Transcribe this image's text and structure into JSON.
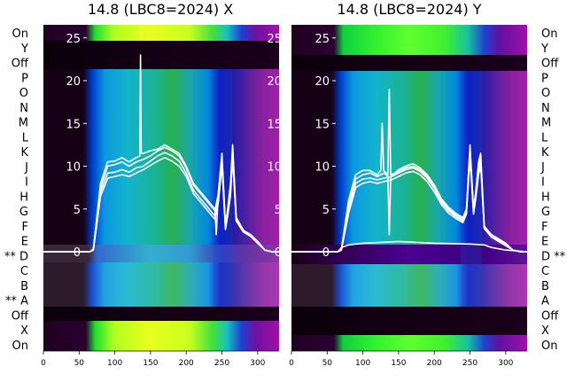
{
  "panels": [
    {
      "title": "14.8 (LBC8=2024) X",
      "row_labels": [
        "On",
        "Y",
        "Off",
        "P",
        "O",
        "N",
        "M",
        "L",
        "K",
        "J",
        "I",
        "H",
        "G",
        "F",
        "E",
        "** D",
        "C",
        "B",
        "** A",
        "Off",
        "X",
        "On"
      ],
      "yticks": [
        "25",
        "20",
        "15",
        "10",
        "5",
        "0"
      ],
      "xticks": [
        "0",
        "50",
        "100",
        "150",
        "200",
        "250",
        "300"
      ]
    },
    {
      "title": "14.8 (LBC8=2024) Y",
      "row_labels": [
        "On",
        "Y",
        "Off",
        "P",
        "O",
        "N",
        "M",
        "L",
        "K",
        "J",
        "I",
        "H",
        "G",
        "F",
        "E",
        "D **",
        "C",
        "B",
        "A",
        "Off",
        "X",
        "On"
      ],
      "yticks": [
        "25",
        "20",
        "15",
        "10",
        "5",
        "0"
      ],
      "xticks": [
        "0",
        "50",
        "100",
        "150",
        "200",
        "250",
        "300"
      ]
    }
  ],
  "chart_data": [
    {
      "type": "line",
      "title": "14.8 (LBC8=2024) X",
      "xlim": [
        0,
        330
      ],
      "ylim": [
        -12,
        27
      ],
      "background": "heatmap",
      "series": [
        {
          "x": [
            0,
            60,
            65,
            70,
            80,
            90,
            100,
            110,
            120,
            130,
            135,
            136,
            137,
            140,
            150,
            160,
            170,
            180,
            190,
            200,
            210,
            220,
            230,
            240,
            242,
            245,
            250,
            255,
            258,
            262,
            265,
            270,
            280,
            290,
            300,
            310,
            320,
            330
          ],
          "y": [
            0,
            0,
            0,
            0.3,
            8,
            10.5,
            10.6,
            11,
            10.5,
            11,
            11.2,
            23,
            11.5,
            11.5,
            11.8,
            12,
            12.5,
            12,
            11.5,
            10,
            8,
            7,
            6,
            5,
            2,
            7,
            11.5,
            3,
            5,
            8,
            12.5,
            4,
            2.5,
            2,
            1.2,
            0.2,
            0,
            0
          ]
        },
        {
          "x": [
            0,
            60,
            65,
            70,
            80,
            90,
            100,
            110,
            120,
            130,
            140,
            150,
            160,
            170,
            180,
            190,
            200,
            210,
            220,
            230,
            240,
            245,
            250,
            255,
            258,
            262,
            265,
            270,
            280,
            290,
            300,
            310,
            320,
            330
          ],
          "y": [
            0,
            0,
            0,
            0.3,
            7.5,
            10,
            10.2,
            10.5,
            10,
            10.5,
            10.8,
            11.2,
            11.8,
            12.2,
            11.8,
            11.2,
            9.8,
            7.8,
            6.8,
            5.8,
            4.8,
            6.8,
            11,
            3,
            4.8,
            7.5,
            12,
            4,
            2.5,
            2,
            1.2,
            0.2,
            0,
            0
          ]
        },
        {
          "x": [
            0,
            60,
            65,
            70,
            80,
            90,
            100,
            110,
            120,
            130,
            140,
            150,
            160,
            170,
            180,
            190,
            200,
            210,
            220,
            230,
            240,
            245,
            250,
            255,
            258,
            262,
            265,
            270,
            280,
            290,
            300,
            310,
            320,
            330
          ],
          "y": [
            0,
            0,
            0,
            0.3,
            7,
            9.2,
            9.3,
            9.6,
            9.3,
            9.8,
            10,
            10.6,
            11.2,
            11.6,
            11.2,
            10.6,
            9.2,
            7.2,
            6.2,
            5.2,
            4.2,
            6.2,
            10.5,
            2.8,
            4.5,
            7,
            11.5,
            3.8,
            2.4,
            1.9,
            1.1,
            0.2,
            0,
            0
          ]
        },
        {
          "x": [
            0,
            60,
            65,
            70,
            80,
            90,
            100,
            110,
            120,
            130,
            140,
            150,
            160,
            170,
            180,
            190,
            200,
            210,
            220,
            230,
            240,
            245,
            250,
            255,
            258,
            262,
            265,
            270,
            280,
            290,
            300,
            310,
            320,
            330
          ],
          "y": [
            0,
            0,
            0,
            0.2,
            6.5,
            8.6,
            8.8,
            9,
            8.8,
            9.2,
            9.6,
            10.1,
            10.6,
            11,
            10.6,
            10,
            8.8,
            6.8,
            5.8,
            4.8,
            3.8,
            5.8,
            10,
            2.6,
            4.2,
            6.6,
            11,
            3.6,
            2.3,
            1.8,
            1,
            0.2,
            0,
            0
          ]
        }
      ]
    },
    {
      "type": "line",
      "title": "14.8 (LBC8=2024) Y",
      "xlim": [
        0,
        330
      ],
      "ylim": [
        -12,
        27
      ],
      "background": "heatmap",
      "series": [
        {
          "x": [
            0,
            60,
            65,
            70,
            80,
            90,
            100,
            110,
            120,
            125,
            127,
            129,
            135,
            137,
            139,
            145,
            150,
            160,
            170,
            180,
            190,
            200,
            210,
            220,
            230,
            240,
            245,
            250,
            255,
            258,
            262,
            265,
            270,
            280,
            290,
            300,
            310,
            320,
            330
          ],
          "y": [
            0,
            0,
            0,
            0.3,
            6,
            9,
            9.5,
            9.5,
            9,
            9.5,
            15,
            9.5,
            9,
            19,
            9,
            9.2,
            9.6,
            10,
            10.3,
            9.8,
            9,
            7.8,
            6.2,
            5.2,
            4.5,
            4,
            5,
            12.5,
            5,
            7,
            10.5,
            11.5,
            3,
            2,
            1.5,
            1,
            0.2,
            0,
            0
          ]
        },
        {
          "x": [
            0,
            60,
            65,
            70,
            80,
            90,
            100,
            110,
            120,
            125,
            130,
            135,
            137,
            139,
            145,
            150,
            160,
            170,
            180,
            190,
            200,
            210,
            220,
            230,
            240,
            245,
            250,
            255,
            258,
            262,
            265,
            270,
            280,
            290,
            300,
            310,
            320,
            330
          ],
          "y": [
            0,
            0,
            0,
            0.3,
            5.5,
            8.5,
            9,
            9.2,
            8.8,
            9,
            9.2,
            8.8,
            2,
            8.8,
            9,
            9.4,
            9.8,
            10,
            9.6,
            8.8,
            7.6,
            6,
            5,
            4.3,
            3.8,
            4.8,
            12,
            4.8,
            6.8,
            10,
            11,
            2.9,
            1.9,
            1.4,
            0.9,
            0.2,
            0,
            0
          ]
        },
        {
          "x": [
            0,
            60,
            65,
            70,
            80,
            90,
            100,
            110,
            120,
            130,
            140,
            150,
            160,
            170,
            180,
            190,
            200,
            210,
            220,
            230,
            240,
            245,
            250,
            255,
            258,
            262,
            265,
            270,
            280,
            290,
            300,
            310,
            320,
            330
          ],
          "y": [
            0,
            0,
            0,
            0.2,
            5,
            8,
            8.5,
            8.6,
            8.4,
            8.6,
            8.8,
            9.2,
            9.6,
            9.8,
            9.4,
            8.6,
            7.4,
            5.8,
            4.8,
            4.1,
            3.6,
            4.6,
            11.5,
            4.6,
            6.5,
            9.5,
            10.5,
            2.8,
            1.8,
            1.3,
            0.8,
            0.2,
            0,
            0
          ]
        },
        {
          "x": [
            0,
            60,
            65,
            70,
            80,
            90,
            100,
            110,
            120,
            130,
            140,
            150,
            160,
            170,
            180,
            190,
            200,
            210,
            220,
            230,
            240,
            245,
            250,
            255,
            258,
            262,
            265,
            270,
            280,
            290,
            300,
            310,
            320,
            330
          ],
          "y": [
            0,
            0,
            0,
            0.2,
            4.5,
            7.5,
            8,
            8.2,
            8,
            8.2,
            8.4,
            8.8,
            9.2,
            9.4,
            9,
            8.2,
            7,
            5.5,
            4.5,
            3.9,
            3.4,
            4.4,
            11,
            4.4,
            6.2,
            9,
            10,
            2.7,
            1.7,
            1.2,
            0.7,
            0.2,
            0,
            0
          ]
        },
        {
          "x": [
            0,
            60,
            65,
            70,
            80,
            100,
            150,
            200,
            250,
            270,
            280,
            300,
            330
          ],
          "y": [
            0,
            0,
            0,
            0.5,
            0.8,
            1,
            1.2,
            1,
            0.9,
            0.8,
            0.5,
            0.2,
            0
          ]
        }
      ]
    }
  ]
}
